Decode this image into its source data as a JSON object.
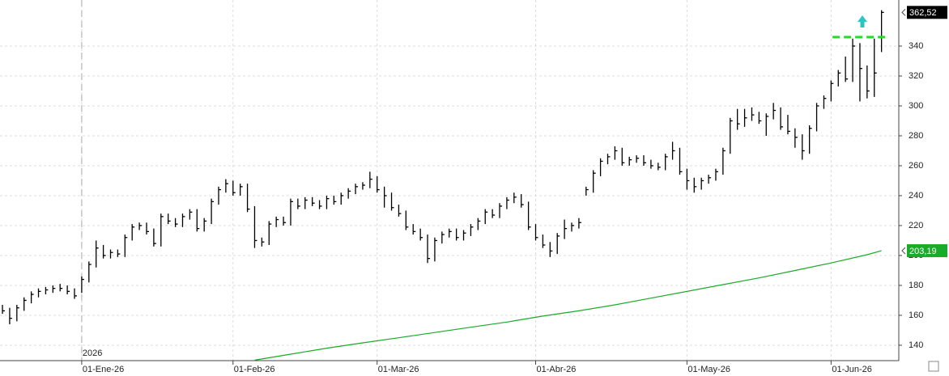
{
  "chart_data": {
    "type": "ohlc",
    "year_label": "2026",
    "high": [
      167,
      165,
      167,
      172,
      176,
      178,
      179,
      180,
      181,
      180,
      178,
      186,
      196,
      210,
      207,
      204,
      204,
      214,
      221,
      222,
      222,
      218,
      228,
      228,
      225,
      228,
      231,
      231,
      225,
      238,
      246,
      251,
      250,
      248,
      248,
      233,
      212,
      223,
      226,
      226,
      238,
      238,
      239,
      239,
      237,
      240,
      240,
      242,
      245,
      248,
      249,
      256,
      253,
      246,
      242,
      234,
      230,
      221,
      218,
      214,
      212,
      216,
      218,
      218,
      217,
      221,
      225,
      231,
      231,
      235,
      239,
      242,
      241,
      236,
      221,
      214,
      209,
      215,
      224,
      222,
      225,
      246,
      257,
      265,
      268,
      273,
      272,
      266,
      267,
      267,
      264,
      262,
      268,
      276,
      272,
      258,
      252,
      252,
      254,
      258,
      272,
      292,
      298,
      298,
      299,
      296,
      295,
      302,
      299,
      294,
      285,
      281,
      287,
      302,
      307,
      317,
      324,
      333,
      345,
      342,
      327,
      345,
      364
    ],
    "low": [
      161,
      154,
      156,
      163,
      168,
      172,
      174,
      175,
      176,
      174,
      171,
      175,
      182,
      192,
      198,
      198,
      199,
      199,
      210,
      217,
      214,
      206,
      206,
      221,
      219,
      219,
      224,
      216,
      216,
      221,
      234,
      242,
      240,
      240,
      229,
      205,
      206,
      207,
      219,
      220,
      220,
      231,
      231,
      233,
      231,
      231,
      234,
      234,
      238,
      241,
      244,
      245,
      242,
      232,
      230,
      226,
      217,
      214,
      210,
      195,
      196,
      208,
      212,
      210,
      210,
      213,
      217,
      221,
      225,
      225,
      231,
      235,
      232,
      217,
      210,
      205,
      199,
      201,
      211,
      216,
      218,
      240,
      242,
      253,
      261,
      264,
      260,
      260,
      262,
      260,
      258,
      257,
      257,
      264,
      254,
      244,
      242,
      244,
      248,
      250,
      254,
      268,
      284,
      286,
      290,
      288,
      280,
      291,
      284,
      281,
      272,
      264,
      268,
      283,
      298,
      303,
      313,
      316,
      316,
      303,
      305,
      306,
      336
    ],
    "close": [
      163,
      158,
      165,
      170,
      174,
      176,
      177,
      178,
      178,
      176,
      173,
      184,
      194,
      205,
      200,
      202,
      201,
      212,
      219,
      220,
      216,
      208,
      226,
      223,
      221,
      226,
      229,
      218,
      223,
      236,
      244,
      248,
      242,
      246,
      231,
      210,
      209,
      221,
      224,
      222,
      236,
      233,
      237,
      235,
      233,
      238,
      236,
      240,
      243,
      246,
      247,
      251,
      244,
      240,
      232,
      228,
      219,
      216,
      212,
      198,
      210,
      214,
      216,
      212,
      215,
      219,
      223,
      229,
      227,
      233,
      237,
      239,
      234,
      219,
      212,
      207,
      203,
      213,
      218,
      220,
      222,
      244,
      255,
      263,
      266,
      270,
      262,
      264,
      265,
      262,
      260,
      259,
      266,
      270,
      256,
      250,
      246,
      250,
      252,
      256,
      270,
      290,
      288,
      292,
      294,
      290,
      293,
      297,
      286,
      283,
      279,
      270,
      285,
      300,
      305,
      315,
      322,
      318,
      340,
      325,
      310,
      322,
      362.52
    ],
    "bar_color": "#000000",
    "moving_average": {
      "color": "#1aab2a",
      "x": [
        35,
        40,
        45,
        50,
        55,
        60,
        65,
        70,
        75,
        80,
        85,
        90,
        95,
        100,
        105,
        110,
        115,
        120,
        122
      ],
      "values": [
        130,
        134,
        138,
        141.6,
        145,
        148.5,
        152,
        155.5,
        159.5,
        163,
        167,
        171.5,
        176,
        180.5,
        185,
        190,
        195,
        200.5,
        203.19
      ]
    },
    "last_labels": [
      {
        "value": 362.52,
        "label": "362,52",
        "color": "#000000"
      },
      {
        "value": 203.19,
        "label": "203,19",
        "color": "#1aab2a"
      }
    ],
    "level_line": {
      "value": 346,
      "x": [
        115.2,
        122.8
      ],
      "color": "#22dd22"
    },
    "xlim": [
      -0.34,
      124.4
    ],
    "ylim": [
      129.7,
      370.8
    ],
    "yticks": [
      140,
      160,
      180,
      200,
      220,
      240,
      260,
      280,
      300,
      320,
      340
    ],
    "xticks": [
      {
        "value": 11,
        "label": "01-Ene-26"
      },
      {
        "value": 32,
        "label": "01-Feb-26"
      },
      {
        "value": 52,
        "label": "01-Mar-26"
      },
      {
        "value": 74,
        "label": "01-Abr-26"
      },
      {
        "value": 95,
        "label": "01-May-26"
      },
      {
        "value": 115,
        "label": "01-Jun-26"
      }
    ],
    "grid": true
  }
}
